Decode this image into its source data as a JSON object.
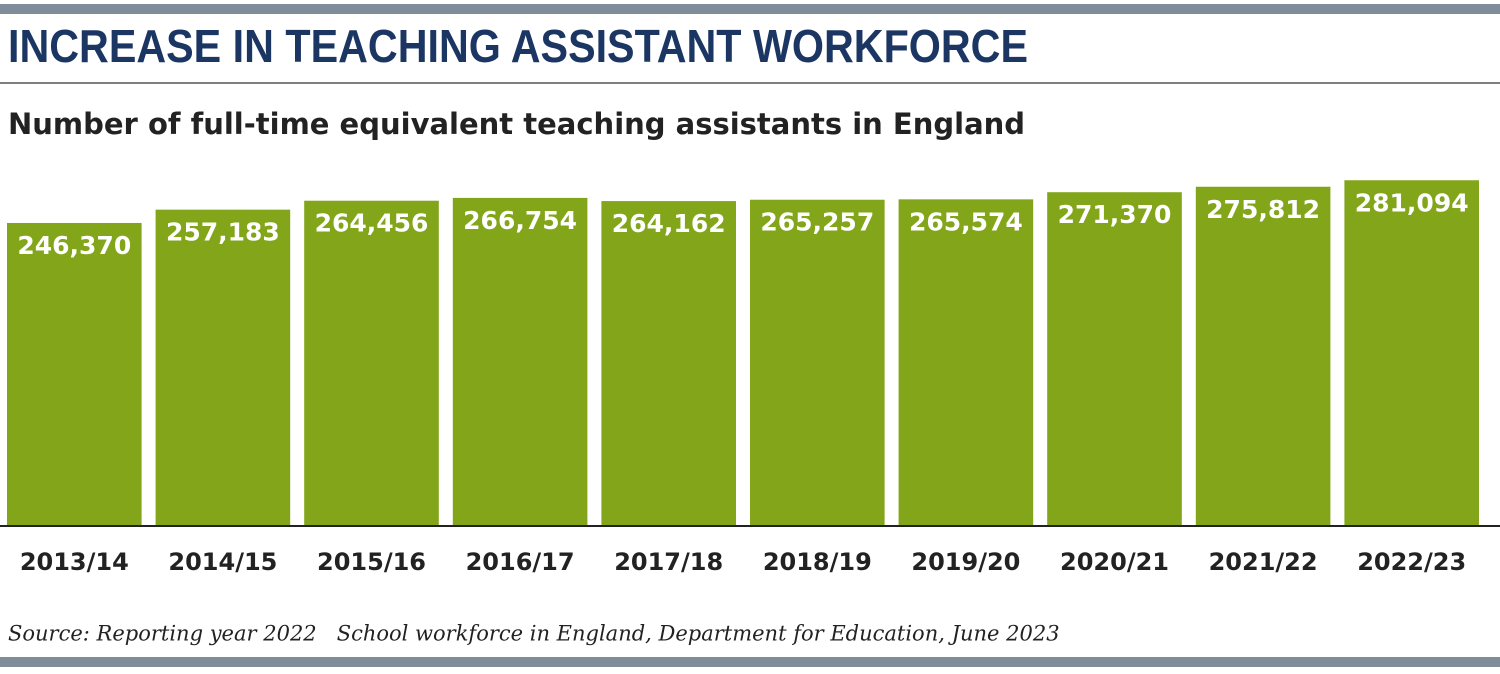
{
  "chart_data": {
    "type": "bar",
    "title": "INCREASE IN TEACHING ASSISTANT WORKFORCE",
    "subtitle": "Number of full-time equivalent teaching assistants in England",
    "categories": [
      "2013/14",
      "2014/15",
      "2015/16",
      "2016/17",
      "2017/18",
      "2018/19",
      "2019/20",
      "2020/21",
      "2021/22",
      "2022/23"
    ],
    "values": [
      246370,
      257183,
      264456,
      266754,
      264162,
      265257,
      265574,
      271370,
      275812,
      281094
    ],
    "value_labels": [
      "246,370",
      "257,183",
      "264,456",
      "266,754",
      "264,162",
      "265,257",
      "265,574",
      "271,370",
      "275,812",
      "281,094"
    ],
    "color": "#82a51a",
    "ylim": [
      0,
      300000
    ],
    "source": "Source: Reporting year 2022   School workforce in England, Department for Education, June 2023"
  }
}
